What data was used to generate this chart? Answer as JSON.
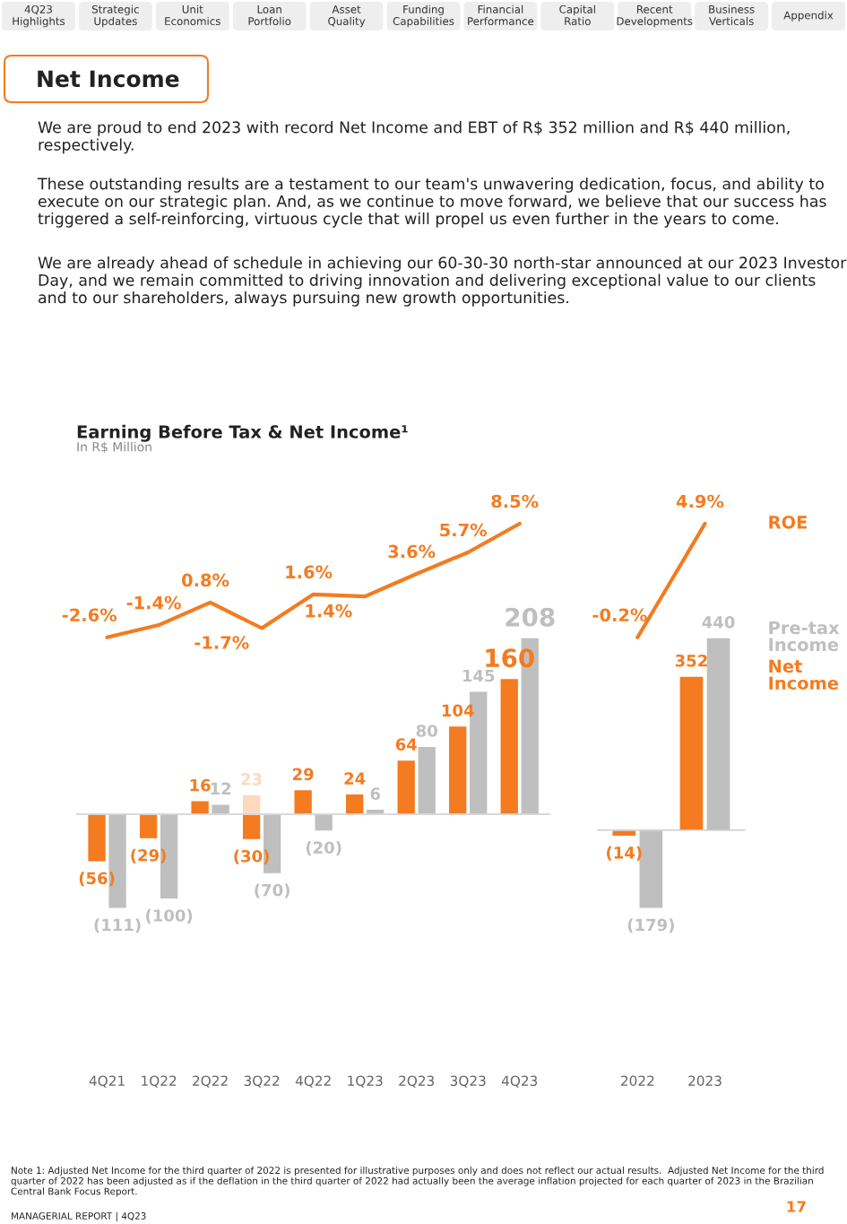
{
  "chart_data": [
    {
      "type": "other",
      "title": "Net Income",
      "categories": [
        "4Q23\nHighlights",
        "Strategic\nUpdates",
        "Unit\nEconomics",
        "Loan\nPortfolio",
        "Asset\nQuality",
        "Funding\nCapabilities",
        "Financial\nPerformance",
        "Capital\nRatio",
        "Recent\nDevelopments",
        "Business\nVerticals",
        "Appendix"
      ],
      "annotations": [
        "We are proud to end 2023 with record Net Income and EBT of R$ 352 million and R$ 440 million, respectively.",
        "These outstanding results are a testament to our team's unwavering dedication, focus, and ability to execute on our strategic plan. And, as we continue to move forward, we believe that our success has triggered a self-reinforcing, virtuous cycle that will propel us even further in the years to come.",
        "We are already ahead of schedule in achieving our 60-30-30 north-star announced at our 2023 Investor Day, and we remain committed to driving innovation and delivering exceptional value to our clients and to our shareholders, always pursuing new growth opportunities."
      ]
    },
    {
      "type": "line",
      "title": "Earning Before Tax & Net Income¹",
      "subtitle": "In R$ Million",
      "categories": [
        null,
        null,
        null,
        null,
        null,
        null,
        null,
        null,
        null
      ],
      "series": [
        {
          "color": "#f47b20",
          "values": [
            -2.6,
            -1.4,
            0.8,
            -1.7,
            1.6,
            1.4,
            3.6,
            5.7,
            8.5
          ],
          "value_labels": [
            "-2.6%",
            "-1.4%",
            "0.8%",
            "-1.7%",
            "1.6%",
            "1.4%",
            "3.6%",
            "5.7%",
            "8.5%"
          ]
        }
      ],
      "data_labels": true,
      "tick_labels": false,
      "legend": false
    },
    {
      "type": "bar",
      "categories": [
        "4Q21",
        "1Q22",
        "2Q22",
        "3Q22",
        "4Q22",
        "1Q23",
        "2Q23",
        "3Q23",
        "4Q23"
      ],
      "series": [
        {
          "color": "#f47b20",
          "values": [
            -56,
            -29,
            16,
            -30,
            29,
            24,
            64,
            104,
            160
          ],
          "value_labels": [
            "(56)",
            "(29)",
            "16",
            "(30)",
            "29",
            "24",
            "64",
            "104",
            "160"
          ]
        },
        {
          "color": "#bfbfbf",
          "values": [
            -111,
            -100,
            12,
            -70,
            -20,
            6,
            80,
            145,
            208
          ],
          "value_labels": [
            "(111)",
            "(100)",
            "12",
            "(70)",
            "(20)",
            "6",
            "80",
            "145",
            "208"
          ]
        },
        {
          "color": "#fcd9bf",
          "values": [
            null,
            null,
            null,
            23,
            null,
            null,
            null,
            null,
            null
          ],
          "value_labels": [
            null,
            null,
            null,
            "23",
            null,
            null,
            null,
            null,
            null
          ]
        }
      ],
      "data_labels": true,
      "tick_labels": "x",
      "legend": false
    },
    {
      "type": "line",
      "categories": [
        null,
        null
      ],
      "series": [
        {
          "name": "ROE",
          "color": "#f47b20",
          "values": [
            -0.2,
            4.9
          ],
          "value_labels": [
            "-0.2%",
            "4.9%"
          ]
        }
      ],
      "data_labels": true,
      "tick_labels": false,
      "legend": "right"
    },
    {
      "type": "bar",
      "categories": [
        "2022",
        "2023"
      ],
      "series": [
        {
          "name": "Net Income",
          "color": "#f47b20",
          "values": [
            -14,
            352
          ],
          "value_labels": [
            "(14)",
            "352"
          ]
        },
        {
          "name": "Pre-tax Income",
          "color": "#bfbfbf",
          "values": [
            -179,
            440
          ],
          "value_labels": [
            "(179)",
            "440"
          ]
        }
      ],
      "data_labels": true,
      "tick_labels": "x",
      "legend": "right"
    },
    {
      "type": "other",
      "annotations": [
        "Note 1: Adjusted Net Income for the third quarter of 2022 is presented for illustrative purposes only and does not reflect our actual results.  Adjusted Net Income for the third quarter of 2022 has been adjusted as if the deflation in the third quarter of 2022 had actually been the average inflation projected for each quarter of 2023 in the Brazilian Central Bank Focus Report.",
        "MANAGERIAL REPORT | 4Q23",
        "17"
      ]
    }
  ]
}
